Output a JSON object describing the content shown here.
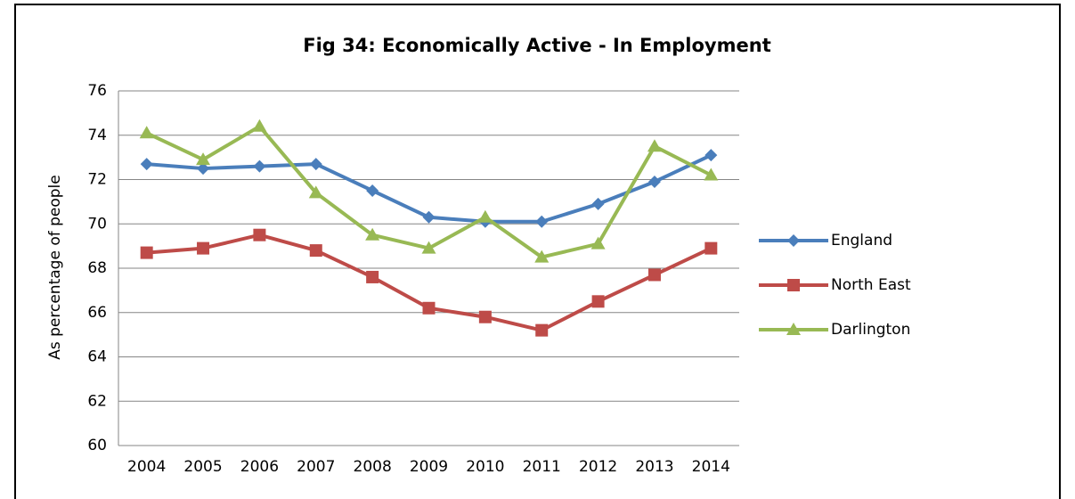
{
  "chart_data": {
    "type": "line",
    "title": "Fig 34: Economically Active - In Employment",
    "y_label": "As percentage of people",
    "categories": [
      "2004",
      "2005",
      "2006",
      "2007",
      "2008",
      "2009",
      "2010",
      "2011",
      "2012",
      "2013",
      "2014"
    ],
    "series": [
      {
        "name": "England",
        "color": "#4a7ebb",
        "marker": "diamond",
        "values": [
          72.7,
          72.5,
          72.6,
          72.7,
          71.5,
          70.3,
          70.1,
          70.1,
          70.9,
          71.9,
          73.1
        ]
      },
      {
        "name": "North East",
        "color": "#be4b48",
        "marker": "square",
        "values": [
          68.7,
          68.9,
          69.5,
          68.8,
          67.6,
          66.2,
          65.8,
          65.2,
          66.5,
          67.7,
          68.9
        ]
      },
      {
        "name": "Darlington",
        "color": "#98b954",
        "marker": "triangle",
        "values": [
          74.1,
          72.9,
          74.4,
          71.4,
          69.5,
          68.9,
          70.3,
          68.5,
          69.1,
          73.5,
          72.2
        ]
      }
    ],
    "ylim": [
      60,
      76
    ],
    "yticks": [
      60,
      62,
      64,
      66,
      68,
      70,
      72,
      74,
      76
    ],
    "grid": true,
    "legend": "right"
  }
}
